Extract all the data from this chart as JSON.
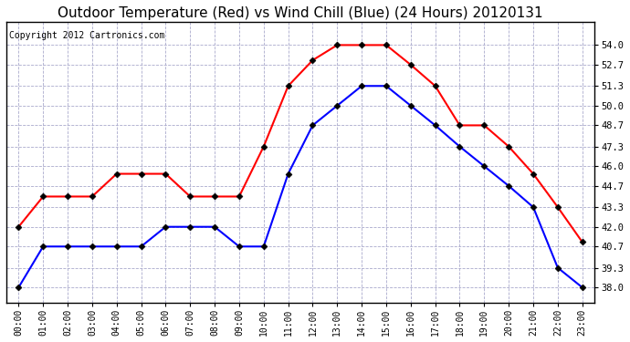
{
  "title": "Outdoor Temperature (Red) vs Wind Chill (Blue) (24 Hours) 20120131",
  "copyright": "Copyright 2012 Cartronics.com",
  "x_labels": [
    "00:00",
    "01:00",
    "02:00",
    "03:00",
    "04:00",
    "05:00",
    "06:00",
    "07:00",
    "08:00",
    "09:00",
    "10:00",
    "11:00",
    "12:00",
    "13:00",
    "14:00",
    "15:00",
    "16:00",
    "17:00",
    "18:00",
    "19:00",
    "20:00",
    "21:00",
    "22:00",
    "23:00"
  ],
  "red_temps": [
    42.0,
    44.0,
    44.0,
    44.0,
    45.5,
    45.5,
    45.5,
    44.0,
    44.0,
    44.0,
    47.3,
    51.3,
    53.0,
    54.0,
    54.0,
    54.0,
    52.7,
    51.3,
    48.7,
    48.7,
    47.3,
    45.5,
    43.3,
    41.0
  ],
  "blue_temps": [
    38.0,
    40.7,
    40.7,
    40.7,
    40.7,
    40.7,
    42.0,
    42.0,
    42.0,
    40.7,
    40.7,
    45.5,
    48.7,
    50.0,
    51.3,
    51.3,
    50.0,
    48.7,
    47.3,
    46.0,
    44.7,
    43.3,
    39.3,
    38.0
  ],
  "ylim": [
    37.0,
    55.5
  ],
  "yticks": [
    38.0,
    39.3,
    40.7,
    42.0,
    43.3,
    44.7,
    46.0,
    47.3,
    48.7,
    50.0,
    51.3,
    52.7,
    54.0
  ],
  "background_color": "#ffffff",
  "grid_color": "#aaaacc",
  "title_fontsize": 11,
  "copyright_fontsize": 7,
  "line_width": 1.5,
  "marker": "D",
  "marker_size": 3.5
}
